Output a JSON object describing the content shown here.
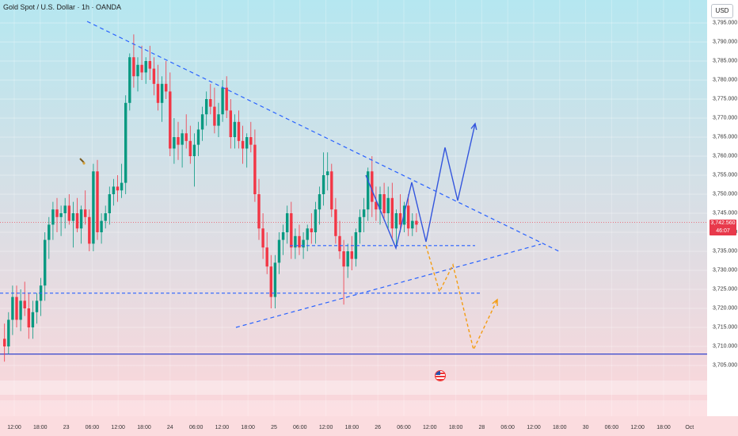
{
  "header": {
    "title": "Gold Spot / U.S. Dollar · 1h · OANDA",
    "currency": "USD"
  },
  "price_axis": {
    "ticks": [
      "3,795.000",
      "3,790.000",
      "3,785.000",
      "3,780.000",
      "3,775.000",
      "3,770.000",
      "3,765.000",
      "3,760.000",
      "3,755.000",
      "3,750.000",
      "3,745.000",
      "3,740.000",
      "3,735.000",
      "3,730.000",
      "3,725.000",
      "3,720.000",
      "3,715.000",
      "3,710.000",
      "3,705.000"
    ],
    "current_price": "3,742.560",
    "countdown": "46:07"
  },
  "time_axis": {
    "ticks": [
      "12:00",
      "18:00",
      "23",
      "06:00",
      "12:00",
      "18:00",
      "24",
      "06:00",
      "12:00",
      "18:00",
      "25",
      "06:00",
      "12:00",
      "18:00",
      "26",
      "06:00",
      "12:00",
      "18:00",
      "28",
      "06:00",
      "12:00",
      "18:00",
      "30",
      "06:00",
      "12:00",
      "18:00",
      "Oct"
    ]
  },
  "colors": {
    "up": "#089981",
    "down": "#f23645",
    "pattern_lines": "#2962ff",
    "bullish_path": "#3355dd",
    "bearish_path": "#f39c12",
    "support_line": "#3344cc",
    "bg_top": "#b5e7f0",
    "bg_bottom": "#fcd6da"
  },
  "icons": {
    "event_marker": "us-flag-icon",
    "drawing_marker": "brush-icon"
  },
  "chart_data": {
    "type": "candlestick",
    "ylim": [
      3705,
      3797
    ],
    "candles": [
      [
        3712,
        3716,
        3706,
        3710
      ],
      [
        3710,
        3719,
        3708,
        3717
      ],
      [
        3717,
        3726,
        3713,
        3723
      ],
      [
        3723,
        3726,
        3715,
        3717
      ],
      [
        3717,
        3725,
        3714,
        3722
      ],
      [
        3722,
        3727,
        3718,
        3720
      ],
      [
        3720,
        3724,
        3712,
        3715
      ],
      [
        3715,
        3722,
        3712,
        3719
      ],
      [
        3719,
        3724,
        3716,
        3722
      ],
      [
        3722,
        3728,
        3718,
        3726
      ],
      [
        3726,
        3740,
        3722,
        3738
      ],
      [
        3738,
        3744,
        3733,
        3742
      ],
      [
        3742,
        3748,
        3738,
        3746
      ],
      [
        3746,
        3749,
        3740,
        3744
      ],
      [
        3744,
        3747,
        3739,
        3745
      ],
      [
        3745,
        3749,
        3741,
        3747
      ],
      [
        3747,
        3750,
        3742,
        3743
      ],
      [
        3743,
        3748,
        3736,
        3745
      ],
      [
        3745,
        3749,
        3740,
        3741
      ],
      [
        3741,
        3747,
        3737,
        3746
      ],
      [
        3746,
        3751,
        3742,
        3744
      ],
      [
        3744,
        3746,
        3735,
        3737
      ],
      [
        3737,
        3758,
        3735,
        3756
      ],
      [
        3756,
        3759,
        3738,
        3740
      ],
      [
        3740,
        3745,
        3737,
        3743
      ],
      [
        3743,
        3747,
        3741,
        3745
      ],
      [
        3745,
        3752,
        3742,
        3750
      ],
      [
        3750,
        3754,
        3747,
        3752
      ],
      [
        3752,
        3755,
        3748,
        3751
      ],
      [
        3751,
        3758,
        3749,
        3753
      ],
      [
        3753,
        3776,
        3750,
        3774
      ],
      [
        3774,
        3787,
        3772,
        3786
      ],
      [
        3786,
        3792,
        3778,
        3781
      ],
      [
        3781,
        3786,
        3777,
        3784
      ],
      [
        3784,
        3789,
        3780,
        3782
      ],
      [
        3782,
        3786,
        3779,
        3785
      ],
      [
        3785,
        3789,
        3780,
        3783
      ],
      [
        3783,
        3786,
        3776,
        3779
      ],
      [
        3779,
        3784,
        3772,
        3774
      ],
      [
        3774,
        3781,
        3769,
        3779
      ],
      [
        3779,
        3785,
        3775,
        3777
      ],
      [
        3777,
        3782,
        3760,
        3762
      ],
      [
        3762,
        3770,
        3758,
        3765
      ],
      [
        3765,
        3769,
        3759,
        3763
      ],
      [
        3763,
        3767,
        3757,
        3766
      ],
      [
        3766,
        3771,
        3762,
        3764
      ],
      [
        3764,
        3768,
        3758,
        3760
      ],
      [
        3760,
        3766,
        3752,
        3763
      ],
      [
        3763,
        3769,
        3760,
        3767
      ],
      [
        3767,
        3773,
        3764,
        3771
      ],
      [
        3771,
        3777,
        3768,
        3775
      ],
      [
        3775,
        3779,
        3771,
        3773
      ],
      [
        3773,
        3778,
        3766,
        3768
      ],
      [
        3768,
        3774,
        3765,
        3771
      ],
      [
        3771,
        3780,
        3769,
        3778
      ],
      [
        3778,
        3781,
        3770,
        3772
      ],
      [
        3772,
        3775,
        3762,
        3765
      ],
      [
        3765,
        3771,
        3762,
        3769
      ],
      [
        3769,
        3772,
        3762,
        3764
      ],
      [
        3764,
        3768,
        3758,
        3762
      ],
      [
        3762,
        3766,
        3757,
        3765
      ],
      [
        3765,
        3769,
        3761,
        3763
      ],
      [
        3763,
        3767,
        3748,
        3750
      ],
      [
        3750,
        3754,
        3738,
        3741
      ],
      [
        3741,
        3745,
        3733,
        3736
      ],
      [
        3736,
        3740,
        3729,
        3731
      ],
      [
        3731,
        3734,
        3720,
        3723
      ],
      [
        3723,
        3734,
        3720,
        3732
      ],
      [
        3732,
        3740,
        3729,
        3738
      ],
      [
        3738,
        3742,
        3734,
        3740
      ],
      [
        3740,
        3747,
        3737,
        3745
      ],
      [
        3745,
        3748,
        3733,
        3736
      ],
      [
        3736,
        3741,
        3733,
        3739
      ],
      [
        3739,
        3742,
        3734,
        3736
      ],
      [
        3736,
        3740,
        3733,
        3738
      ],
      [
        3738,
        3742,
        3735,
        3741
      ],
      [
        3741,
        3745,
        3737,
        3740
      ],
      [
        3740,
        3748,
        3737,
        3746
      ],
      [
        3746,
        3752,
        3742,
        3750
      ],
      [
        3750,
        3761,
        3747,
        3755
      ],
      [
        3755,
        3761,
        3751,
        3756
      ],
      [
        3756,
        3758,
        3744,
        3746
      ],
      [
        3746,
        3749,
        3737,
        3739
      ],
      [
        3739,
        3743,
        3733,
        3735
      ],
      [
        3735,
        3738,
        3721,
        3731
      ],
      [
        3731,
        3737,
        3728,
        3735
      ],
      [
        3735,
        3739,
        3730,
        3733
      ],
      [
        3733,
        3741,
        3731,
        3740
      ],
      [
        3740,
        3746,
        3737,
        3744
      ],
      [
        3744,
        3749,
        3740,
        3746
      ],
      [
        3746,
        3757,
        3743,
        3756
      ],
      [
        3756,
        3760,
        3744,
        3748
      ],
      [
        3748,
        3752,
        3743,
        3746
      ],
      [
        3746,
        3752,
        3742,
        3750
      ],
      [
        3750,
        3753,
        3743,
        3745
      ],
      [
        3745,
        3752,
        3741,
        3749
      ],
      [
        3749,
        3753,
        3738,
        3741
      ],
      [
        3741,
        3746,
        3736,
        3745
      ],
      [
        3745,
        3750,
        3740,
        3742
      ],
      [
        3742,
        3748,
        3740,
        3747
      ],
      [
        3747,
        3750,
        3739,
        3741
      ],
      [
        3741,
        3745,
        3739,
        3743
      ],
      [
        3743,
        3745,
        3740,
        3742
      ]
    ],
    "annotations": {
      "descending_trendline": [
        [
          110,
          27
        ],
        [
          708,
          318
        ]
      ],
      "ascending_trendline": [
        [
          298,
          413
        ],
        [
          683,
          308
        ]
      ],
      "resistance_level": {
        "y": 3736.5,
        "x1": 366,
        "x2": 600
      },
      "support_level": {
        "y": 3724,
        "x1": 0,
        "x2": 607
      },
      "base_level": {
        "y": 3708,
        "x1": 0,
        "x2": 893
      },
      "current_price_line": 3742.56,
      "bullish_path": [
        [
          462,
          221
        ],
        [
          500,
          313
        ],
        [
          520,
          230
        ],
        [
          538,
          305
        ],
        [
          562,
          186
        ],
        [
          578,
          253
        ],
        [
          600,
          156
        ]
      ],
      "bearish_path": [
        [
          538,
          310
        ],
        [
          555,
          368
        ],
        [
          572,
          334
        ],
        [
          598,
          441
        ],
        [
          628,
          378
        ]
      ]
    }
  }
}
